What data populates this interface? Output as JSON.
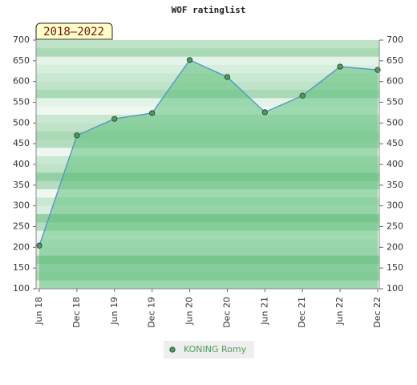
{
  "chart_data": {
    "type": "area",
    "title": "WOF ratinglist",
    "annotation": "2018–2022",
    "categories": [
      "Jun 18",
      "Dec 18",
      "Jun 19",
      "Dec 19",
      "Jun 20",
      "Dec 20",
      "Jun 21",
      "Dec 21",
      "Jun 22",
      "Dec 22"
    ],
    "series": [
      {
        "name": "KONING Romy",
        "color": "#4f9a5e",
        "values": [
          204,
          470,
          510,
          524,
          652,
          611,
          526,
          566,
          636,
          628
        ]
      }
    ],
    "ylim": [
      100,
      700
    ],
    "yticks": [
      100,
      150,
      200,
      250,
      300,
      350,
      400,
      450,
      500,
      550,
      600,
      650,
      700
    ],
    "y2lim": [
      100,
      700
    ],
    "y2ticks": [
      100,
      150,
      200,
      250,
      300,
      350,
      400,
      450,
      500,
      550,
      600,
      650,
      700
    ]
  }
}
